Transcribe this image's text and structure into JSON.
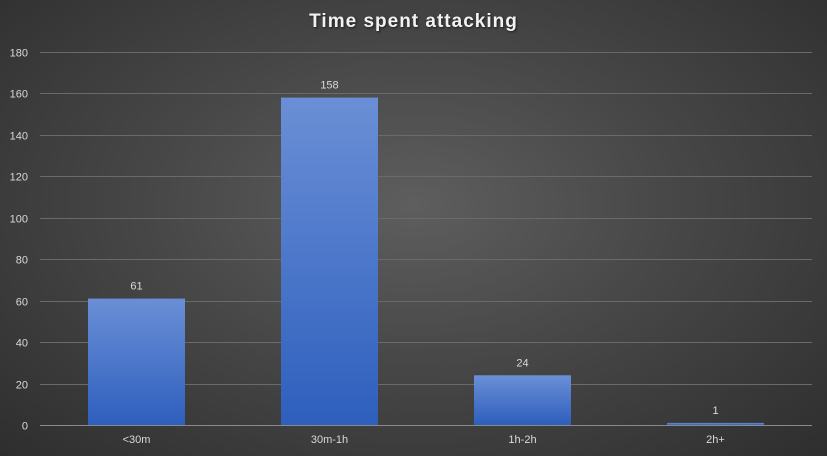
{
  "chart_data": {
    "type": "bar",
    "title": "Time spent attacking",
    "xlabel": "",
    "ylabel": "",
    "categories": [
      "<30m",
      "30m-1h",
      "1h-2h",
      "2h+"
    ],
    "values": [
      61,
      158,
      24,
      1
    ],
    "data_labels": [
      "61",
      "158",
      "24",
      "1"
    ],
    "ylim": [
      0,
      180
    ],
    "yticks": [
      0,
      20,
      40,
      60,
      80,
      100,
      120,
      140,
      160,
      180
    ],
    "grid": true,
    "legend": "none",
    "colors": {
      "bar_top": "#6a8fd6",
      "bar_bottom": "#2e5fbd",
      "gridline": "#6a6a6a",
      "text": "#d9d9d9",
      "title": "#f2f2f2"
    }
  }
}
